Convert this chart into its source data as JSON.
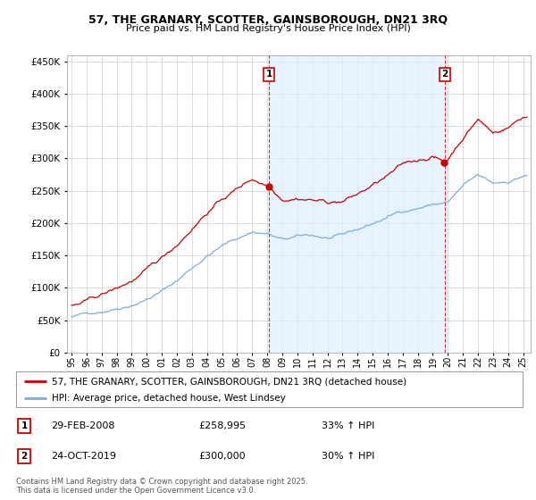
{
  "title1": "57, THE GRANARY, SCOTTER, GAINSBOROUGH, DN21 3RQ",
  "title2": "Price paid vs. HM Land Registry's House Price Index (HPI)",
  "legend1": "57, THE GRANARY, SCOTTER, GAINSBOROUGH, DN21 3RQ (detached house)",
  "legend2": "HPI: Average price, detached house, West Lindsey",
  "marker1_date": "29-FEB-2008",
  "marker1_price": "£258,995",
  "marker1_hpi": "33% ↑ HPI",
  "marker2_date": "24-OCT-2019",
  "marker2_price": "£300,000",
  "marker2_hpi": "30% ↑ HPI",
  "footer": "Contains HM Land Registry data © Crown copyright and database right 2025.\nThis data is licensed under the Open Government Licence v3.0.",
  "vline1_year": 2008.12,
  "vline2_year": 2019.79,
  "property_color": "#cc0000",
  "hpi_color": "#7aaddc",
  "shade_color": "#ddeeff",
  "background_color": "#ffffff",
  "ylim_min": 0,
  "ylim_max": 460000,
  "xlim_min": 1994.7,
  "xlim_max": 2025.5
}
